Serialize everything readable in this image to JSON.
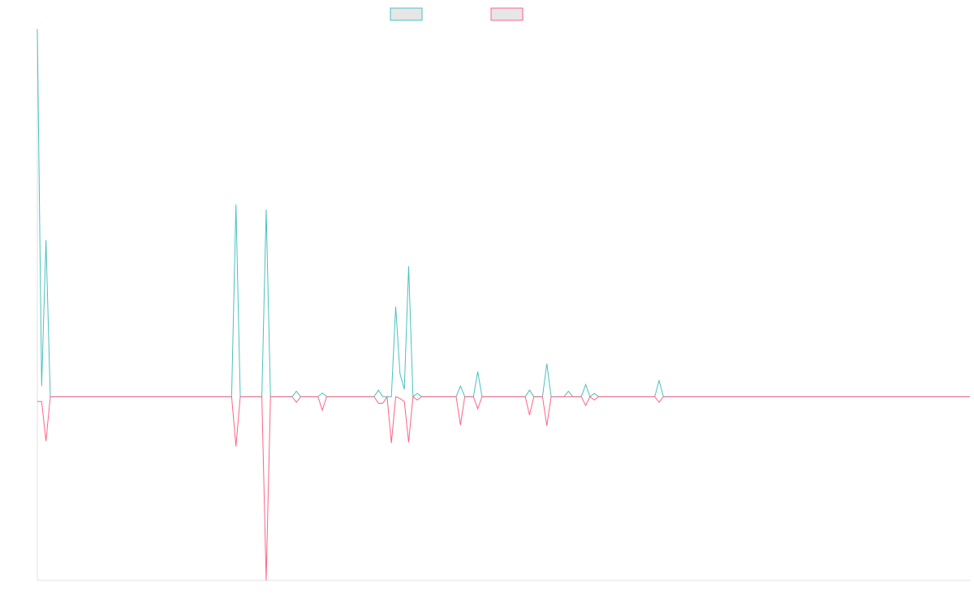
{
  "chart_data": {
    "type": "line",
    "ylim": [
      -50,
      100
    ],
    "series": [
      {
        "color": "#4bc0c0",
        "legend_fill": "#e6e6e6",
        "values": [
          100,
          2.9,
          42.6,
          0,
          0,
          0,
          0,
          0,
          0,
          0,
          0,
          0,
          0,
          0,
          0,
          0,
          0,
          0,
          0,
          0,
          0,
          0,
          0,
          0,
          0,
          0,
          0,
          0,
          0,
          0,
          0,
          0,
          0,
          0,
          0,
          0,
          0,
          0,
          0,
          0,
          0,
          0,
          0,
          0,
          0,
          0,
          52.3,
          0,
          0,
          0,
          0,
          0,
          0,
          50.9,
          0,
          0,
          0,
          0,
          0,
          0,
          1.5,
          0,
          0,
          0,
          0,
          0,
          1,
          0,
          0,
          0,
          0,
          0,
          0,
          0,
          0,
          0,
          0,
          0,
          0,
          1.8,
          0,
          0,
          0,
          24.5,
          6.2,
          2,
          35.5,
          0,
          0.9,
          0,
          0,
          0,
          0,
          0,
          0,
          0,
          0,
          0,
          2.9,
          0,
          0,
          0,
          6.8,
          0,
          0,
          0,
          0,
          0,
          0,
          0,
          0,
          0,
          0,
          0,
          1.8,
          0,
          0,
          0,
          9,
          0,
          0,
          0,
          0,
          1.5,
          0,
          0,
          0,
          3.3,
          0,
          0.9,
          0,
          0,
          0,
          0,
          0,
          0,
          0,
          0,
          0,
          0,
          0,
          0,
          0,
          0,
          4.4,
          0,
          0,
          0,
          0,
          0,
          0,
          0,
          0,
          0,
          0,
          0,
          0,
          0,
          0,
          0,
          0,
          0,
          0,
          0,
          0,
          0,
          0,
          0,
          0,
          0,
          0,
          0,
          0,
          0,
          0,
          0,
          0,
          0,
          0,
          0,
          0,
          0,
          0,
          0,
          0,
          0,
          0,
          0,
          0,
          0,
          0,
          0,
          0,
          0,
          0,
          0,
          0,
          0,
          0,
          0,
          0,
          0,
          0,
          0,
          0,
          0,
          0,
          0,
          0,
          0,
          0,
          0,
          0,
          0,
          0,
          0,
          0
        ]
      },
      {
        "color": "#ff6384",
        "legend_fill": "#e6e6e6",
        "values": [
          -1.3,
          -1.3,
          -12.1,
          0,
          0,
          0,
          0,
          0,
          0,
          0,
          0,
          0,
          0,
          0,
          0,
          0,
          0,
          0,
          0,
          0,
          0,
          0,
          0,
          0,
          0,
          0,
          0,
          0,
          0,
          0,
          0,
          0,
          0,
          0,
          0,
          0,
          0,
          0,
          0,
          0,
          0,
          0,
          0,
          0,
          0,
          0,
          -13.5,
          0,
          0,
          0,
          0,
          0,
          0,
          -50,
          0,
          0,
          0,
          0,
          0,
          0,
          -1.5,
          0,
          0,
          0,
          0,
          0,
          -3.7,
          0,
          0,
          0,
          0,
          0,
          0,
          0,
          0,
          0,
          0,
          0,
          0,
          -1.8,
          -1.8,
          0,
          -12.6,
          0,
          -0.5,
          -1.3,
          -12.4,
          0,
          -0.9,
          0,
          0,
          0,
          0,
          0,
          0,
          0,
          0,
          0,
          -7.7,
          0,
          0,
          0,
          -3.3,
          0,
          0,
          0,
          0,
          0,
          0,
          0,
          0,
          0,
          0,
          0,
          -5,
          0,
          0,
          0,
          -7.9,
          0,
          0,
          0,
          0,
          0,
          0,
          0,
          0,
          -2.4,
          0,
          -0.9,
          0,
          0,
          0,
          0,
          0,
          0,
          0,
          0,
          0,
          0,
          0,
          0,
          0,
          0,
          -1.5,
          0,
          0,
          0,
          0,
          0,
          0,
          0,
          0,
          0,
          0,
          0,
          0,
          0,
          0,
          0,
          0,
          0,
          0,
          0,
          0,
          0,
          0,
          0,
          0,
          0,
          0,
          0,
          0,
          0,
          0,
          0,
          0,
          0,
          0,
          0,
          0,
          0,
          0,
          0,
          0,
          0,
          0,
          0,
          0,
          0,
          0,
          0,
          0,
          0,
          0,
          0,
          0,
          0,
          0,
          0,
          0,
          0,
          0,
          0,
          0,
          0,
          0,
          0,
          0,
          0,
          0,
          0,
          0,
          0,
          0,
          0,
          0
        ]
      }
    ]
  }
}
